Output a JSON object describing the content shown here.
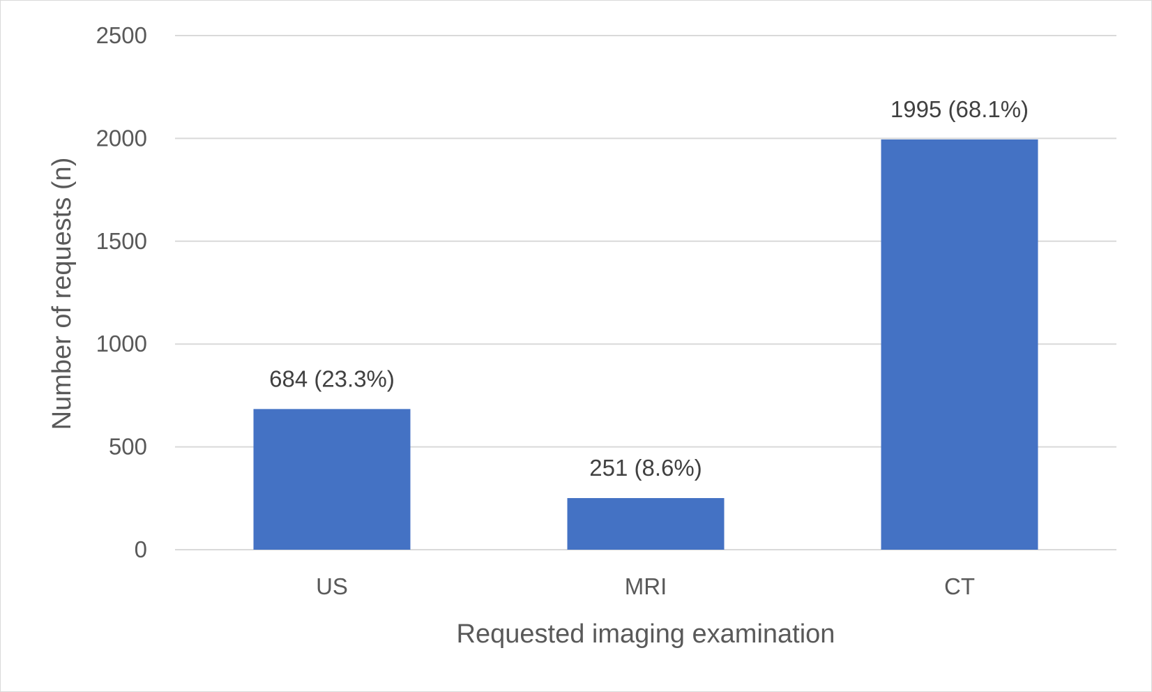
{
  "chart_data": {
    "type": "bar",
    "title": "",
    "xlabel": "Requested imaging examination",
    "ylabel": "Number of requests (n)",
    "categories": [
      "US",
      "MRI",
      "CT"
    ],
    "values": [
      684,
      251,
      1995
    ],
    "data_labels": [
      "684 (23.3%)",
      "251 (8.6%)",
      "1995 (68.1%)"
    ],
    "ylim": [
      0,
      2500
    ],
    "yticks": [
      0,
      500,
      1000,
      1500,
      2000,
      2500
    ],
    "grid": true,
    "legend": "none",
    "bar_color": "#4472c4"
  }
}
